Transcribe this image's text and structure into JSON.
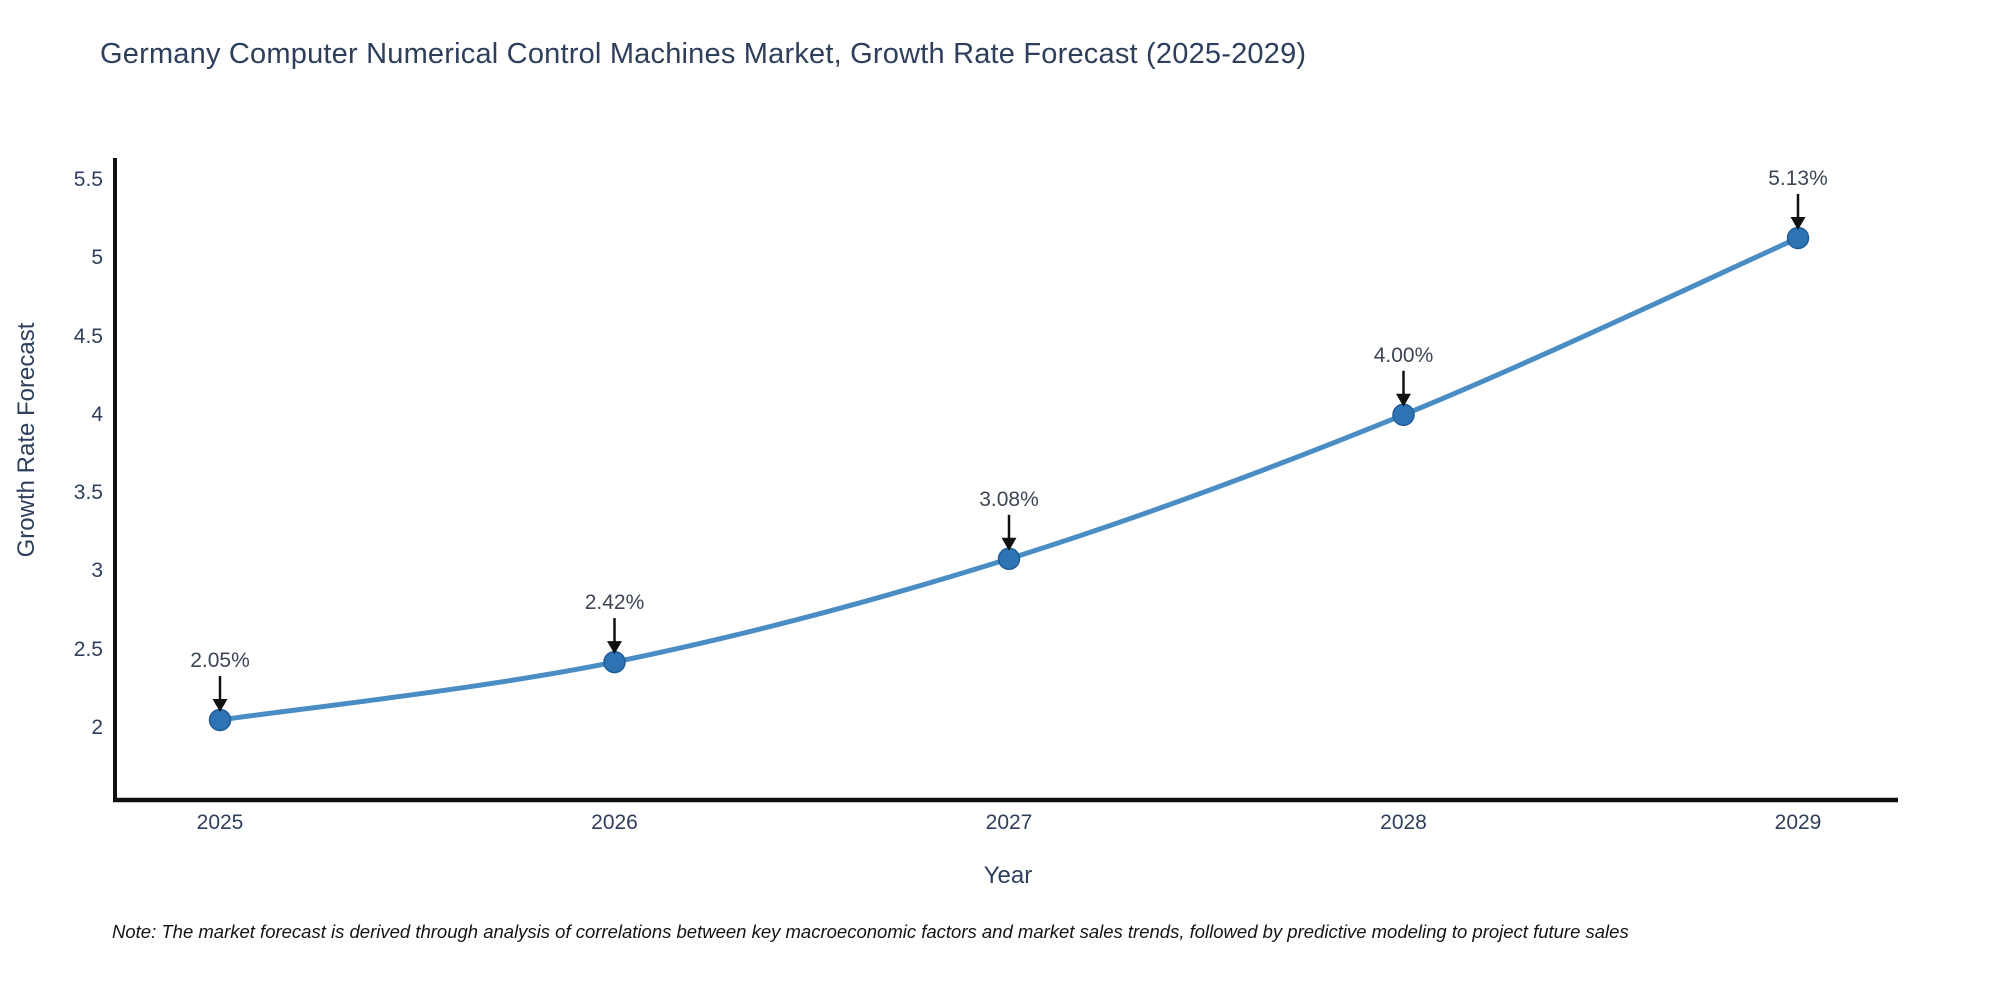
{
  "title": "Germany Computer Numerical Control Machines Market, Growth Rate Forecast (2025-2029)",
  "note": "Note: The market forecast is derived through analysis of correlations between key macroeconomic factors and market sales trends, followed by predictive modeling to project future sales",
  "chart_data": {
    "type": "line",
    "title": "Germany Computer Numerical Control Machines Market, Growth Rate Forecast (2025-2029)",
    "x": [
      2025,
      2026,
      2027,
      2028,
      2029
    ],
    "values": [
      2.05,
      2.42,
      3.08,
      4.0,
      5.13
    ],
    "point_labels": [
      "2.05%",
      "2.42%",
      "3.08%",
      "4.00%",
      "5.13%"
    ],
    "series_note": "single series, smooth spline line with circular markers and downward annotation arrows",
    "xlabel": "Year",
    "ylabel": "Growth Rate Forecast",
    "yticks": [
      5.5,
      5,
      4.5,
      4,
      3.5,
      3,
      2.5,
      2
    ],
    "ylim": [
      1.55,
      5.6
    ],
    "xlim": [
      2024.74,
      2029.25
    ],
    "grid": false,
    "legend": "none",
    "colors": {
      "line": "#4a8dc4",
      "marker": "#2e74b5",
      "marker_edge": "#1f5c96",
      "axis": "#111111",
      "arrow": "#111111",
      "tick_text": "#2e3f5c",
      "annotation_text": "#3d4656"
    }
  }
}
